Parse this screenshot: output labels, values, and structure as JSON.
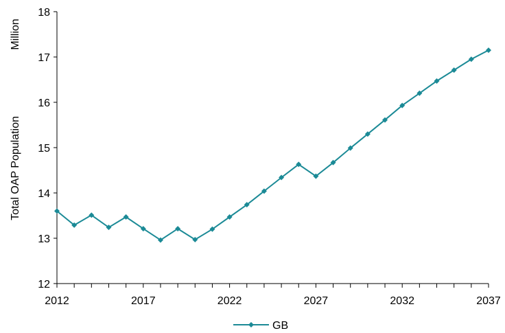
{
  "chart_data": {
    "type": "line",
    "title": "",
    "xlabel": "",
    "ylabel": "Total OAP Population",
    "unit_label": "Million",
    "xlim": [
      2012,
      2037
    ],
    "ylim": [
      12,
      18
    ],
    "x_ticks": [
      "2012",
      "2017",
      "2022",
      "2027",
      "2032",
      "2037"
    ],
    "y_ticks": [
      "12",
      "13",
      "14",
      "15",
      "16",
      "17",
      "18"
    ],
    "grid": false,
    "legend_position": "bottom",
    "series_color": "#1b8a96",
    "series": [
      {
        "name": "GB",
        "x": [
          2012,
          2013,
          2014,
          2015,
          2016,
          2017,
          2018,
          2019,
          2020,
          2021,
          2022,
          2023,
          2024,
          2025,
          2026,
          2027,
          2028,
          2029,
          2030,
          2031,
          2032,
          2033,
          2034,
          2035,
          2036,
          2037
        ],
        "values": [
          13.6,
          13.29,
          13.51,
          13.24,
          13.47,
          13.21,
          12.96,
          13.21,
          12.97,
          13.2,
          13.47,
          13.74,
          14.04,
          14.34,
          14.63,
          14.37,
          14.67,
          14.99,
          15.3,
          15.61,
          15.93,
          16.2,
          16.47,
          16.71,
          16.95,
          17.15
        ]
      }
    ]
  }
}
